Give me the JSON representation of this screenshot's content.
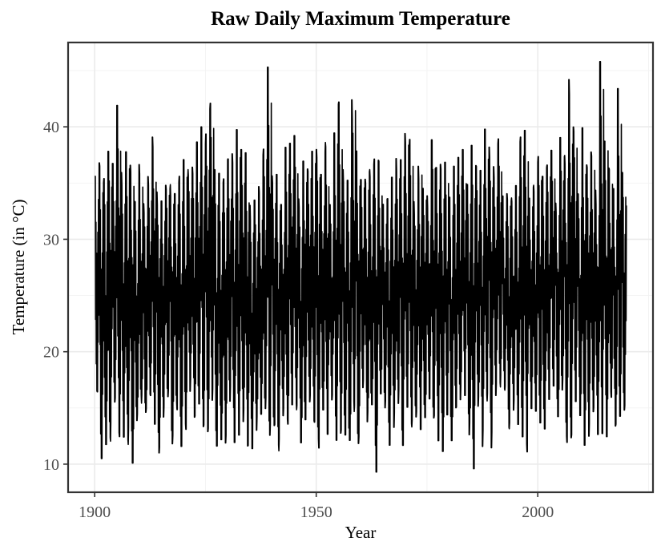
{
  "chart_data": {
    "type": "line",
    "title": "Raw Daily Maximum Temperature",
    "xlabel": "Year",
    "ylabel": "Temperature (in °C)",
    "xlim": [
      1894,
      2026
    ],
    "ylim": [
      7.5,
      47.5
    ],
    "x_ticks": [
      1900,
      1950,
      2000
    ],
    "y_ticks": [
      10,
      20,
      30,
      40
    ],
    "grid": true,
    "legend": "none",
    "series": [
      {
        "x_start": 1900,
        "x_end": 2020,
        "summary": {
          "typical_min_range": [
            11,
            17
          ],
          "typical_max_range": [
            33,
            40
          ],
          "notable_extremes": [
            {
              "year": 1900,
              "value": 35.6
            },
            {
              "year": 1901,
              "value": 10.5
            },
            {
              "year": 1905,
              "value": 41.9
            },
            {
              "year": 1908,
              "value": 10.1
            },
            {
              "year": 1926,
              "value": 42.1
            },
            {
              "year": 1939,
              "value": 45.3
            },
            {
              "year": 1955,
              "value": 42.2
            },
            {
              "year": 1958,
              "value": 42.4
            },
            {
              "year": 1963,
              "value": 9.3
            },
            {
              "year": 1985,
              "value": 9.6
            },
            {
              "year": 2007,
              "value": 44.2
            },
            {
              "year": 2014,
              "value": 45.8
            },
            {
              "year": 2018,
              "value": 43.4
            }
          ]
        }
      }
    ]
  }
}
